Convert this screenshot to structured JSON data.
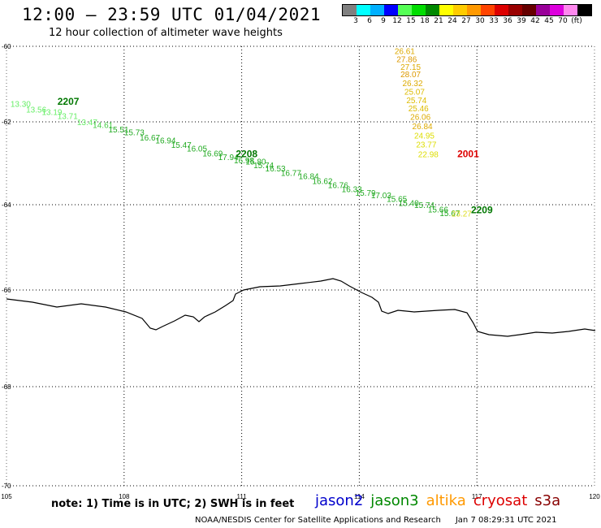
{
  "title": "12:00 – 23:59 UTC 01/04/2021",
  "subtitle": "12 hour collection of altimeter wave heights",
  "legend": {
    "colors": [
      "#808080",
      "#00ffff",
      "#00b0ff",
      "#0000ff",
      "#55ff55",
      "#00dd00",
      "#008800",
      "#ffff00",
      "#ffcc00",
      "#ff9900",
      "#ff4400",
      "#dd0000",
      "#990000",
      "#660000",
      "#990099",
      "#dd00dd",
      "#ff88ee",
      "#000000"
    ],
    "labels": [
      "3",
      "6",
      "9",
      "12",
      "15",
      "18",
      "21",
      "24",
      "27",
      "30",
      "33",
      "36",
      "39",
      "42",
      "45",
      "70",
      "(ft)"
    ]
  },
  "lat_labels": [
    "-60",
    "-62",
    "-64",
    "-66",
    "-68",
    "-70"
  ],
  "lon_labels": [
    "105",
    "108",
    "111",
    "114",
    "117",
    "120"
  ],
  "note": "note: 1) Time is in UTC; 2) SWH is in feet",
  "satellites": [
    {
      "name": "jason2",
      "color": "#0000cc"
    },
    {
      "name": "jason3",
      "color": "#008800"
    },
    {
      "name": "altika",
      "color": "#ff9900"
    },
    {
      "name": "cryosat",
      "color": "#dd0000"
    },
    {
      "name": "s3a",
      "color": "#880000"
    }
  ],
  "credit": "NOAA/NESDIS Center for Satellite Applications and Research",
  "credit_time": "Jan  7 08:29:31 UTC 2021",
  "tracks": [
    {
      "sat": "jason3",
      "time": "2207",
      "color": "#007700",
      "time_pos": [
        106.3,
        -61.55
      ],
      "points": [
        {
          "lon": 105.1,
          "lat": -61.6,
          "v": "13.30",
          "c": "#66ee66"
        },
        {
          "lon": 105.5,
          "lat": -61.75,
          "v": "13.56",
          "c": "#66ee66"
        },
        {
          "lon": 105.9,
          "lat": -61.82,
          "v": "13.19",
          "c": "#66ee66"
        },
        {
          "lon": 106.3,
          "lat": -61.92,
          "v": "13.71",
          "c": "#66ee66"
        },
        {
          "lon": 106.8,
          "lat": -62.08,
          "v": "13.47",
          "c": "#66ee66"
        },
        {
          "lon": 107.2,
          "lat": -62.15,
          "v": "14.61",
          "c": "#44cc44"
        },
        {
          "lon": 107.6,
          "lat": -62.25,
          "v": "15.51",
          "c": "#22aa22"
        },
        {
          "lon": 108.0,
          "lat": -62.32,
          "v": "15.73",
          "c": "#22aa22"
        },
        {
          "lon": 108.4,
          "lat": -62.45,
          "v": "16.67",
          "c": "#22aa22"
        },
        {
          "lon": 108.8,
          "lat": -62.52,
          "v": "16.94",
          "c": "#22aa22"
        },
        {
          "lon": 109.2,
          "lat": -62.63,
          "v": "15.47",
          "c": "#22aa22"
        },
        {
          "lon": 109.6,
          "lat": -62.72,
          "v": "16.05",
          "c": "#22aa22"
        },
        {
          "lon": 110.0,
          "lat": -62.83,
          "v": "16.69",
          "c": "#22aa22"
        },
        {
          "lon": 110.4,
          "lat": -62.92,
          "v": "17.94",
          "c": "#22aa22"
        },
        {
          "lon": 110.8,
          "lat": -63.0,
          "v": "16.98",
          "c": "#22aa22"
        },
        {
          "lon": 111.1,
          "lat": -63.03,
          "v": "15.80",
          "c": "#22aa22"
        },
        {
          "lon": 111.3,
          "lat": -63.12,
          "v": "15.74",
          "c": "#22aa22"
        }
      ]
    },
    {
      "sat": "jason3",
      "time": "2208",
      "color": "#007700",
      "time_pos": [
        110.85,
        -62.85
      ],
      "points": [
        {
          "lon": 111.6,
          "lat": -63.2,
          "v": "16.53",
          "c": "#22aa22"
        },
        {
          "lon": 112.0,
          "lat": -63.3,
          "v": "16.77",
          "c": "#22aa22"
        },
        {
          "lon": 112.45,
          "lat": -63.38,
          "v": "16.84",
          "c": "#22aa22"
        },
        {
          "lon": 112.8,
          "lat": -63.5,
          "v": "16.62",
          "c": "#22aa22"
        },
        {
          "lon": 113.2,
          "lat": -63.6,
          "v": "16.76",
          "c": "#22aa22"
        },
        {
          "lon": 113.55,
          "lat": -63.7,
          "v": "16.33",
          "c": "#22aa22"
        },
        {
          "lon": 113.9,
          "lat": -63.78,
          "v": "15.79",
          "c": "#22aa22"
        },
        {
          "lon": 114.3,
          "lat": -63.84,
          "v": "17.03",
          "c": "#22aa22"
        },
        {
          "lon": 114.7,
          "lat": -63.93,
          "v": "15.65",
          "c": "#22aa22"
        },
        {
          "lon": 115.0,
          "lat": -64.03,
          "v": "15.40",
          "c": "#22aa22"
        },
        {
          "lon": 115.4,
          "lat": -64.08,
          "v": "15.74",
          "c": "#22aa22"
        },
        {
          "lon": 115.75,
          "lat": -64.18,
          "v": "15.66",
          "c": "#22aa22"
        },
        {
          "lon": 116.05,
          "lat": -64.27,
          "v": "15.67",
          "c": "#22aa22"
        },
        {
          "lon": 116.35,
          "lat": -64.28,
          "v": "23.27",
          "c": "#dddd22"
        }
      ]
    },
    {
      "sat": "jason3",
      "time": "2209",
      "color": "#007700",
      "time_pos": [
        116.85,
        -64.2
      ],
      "points": []
    },
    {
      "sat": "altika",
      "time": "",
      "color": "#ddaa00",
      "time_pos": null,
      "points": [
        {
          "lon": 114.9,
          "lat": -60.2,
          "v": "26.61",
          "c": "#ddaa00"
        },
        {
          "lon": 114.95,
          "lat": -60.42,
          "v": "27.86",
          "c": "#dd9900"
        },
        {
          "lon": 115.05,
          "lat": -60.62,
          "v": "27.15",
          "c": "#ddaa00"
        },
        {
          "lon": 115.05,
          "lat": -60.82,
          "v": "28.07",
          "c": "#dd9900"
        },
        {
          "lon": 115.1,
          "lat": -61.05,
          "v": "26.32",
          "c": "#ddaa00"
        },
        {
          "lon": 115.15,
          "lat": -61.28,
          "v": "25.07",
          "c": "#ddbb00"
        },
        {
          "lon": 115.2,
          "lat": -61.5,
          "v": "25.74",
          "c": "#ddbb00"
        },
        {
          "lon": 115.25,
          "lat": -61.72,
          "v": "25.46",
          "c": "#ddbb00"
        },
        {
          "lon": 115.3,
          "lat": -61.95,
          "v": "26.06",
          "c": "#ddaa00"
        },
        {
          "lon": 115.35,
          "lat": -62.18,
          "v": "26.84",
          "c": "#ddaa00"
        },
        {
          "lon": 115.4,
          "lat": -62.4,
          "v": "24.95",
          "c": "#dddd00"
        },
        {
          "lon": 115.45,
          "lat": -62.62,
          "v": "23.77",
          "c": "#dddd00"
        },
        {
          "lon": 115.5,
          "lat": -62.85,
          "v": "22.98",
          "c": "#dddd00"
        }
      ]
    },
    {
      "sat": "cryosat",
      "time": "2001",
      "color": "#dd0000",
      "time_pos": [
        116.5,
        -62.85
      ],
      "points": []
    }
  ]
}
